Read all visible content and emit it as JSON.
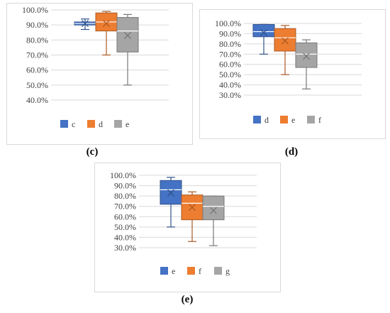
{
  "chart_data": [
    {
      "type": "box",
      "ylim": [
        40,
        100
      ],
      "ytick_labels": [
        "100.0%",
        "90.0%",
        "80.0%",
        "70.0%",
        "60.0%",
        "50.0%",
        "40.0%"
      ],
      "grid": true,
      "legend_position": "bottom",
      "colors": [
        "#4472c4",
        "#ed7d31",
        "#a5a5a5"
      ],
      "series": [
        {
          "name": "c",
          "min": 87,
          "q1": 90,
          "median": 91,
          "q3": 92,
          "max": 94,
          "mean": 91
        },
        {
          "name": "d",
          "min": 70,
          "q1": 86,
          "median": 92,
          "q3": 98,
          "max": 99,
          "mean": 91
        },
        {
          "name": "e",
          "min": 50,
          "q1": 72,
          "median": 86,
          "q3": 95,
          "max": 97,
          "mean": 83
        }
      ]
    },
    {
      "type": "box",
      "ylim": [
        30,
        100
      ],
      "ytick_labels": [
        "100.0%",
        "90.0%",
        "80.0%",
        "70.0%",
        "60.0%",
        "50.0%",
        "40.0%",
        "30.0%"
      ],
      "grid": true,
      "legend_position": "bottom",
      "colors": [
        "#4472c4",
        "#ed7d31",
        "#a5a5a5"
      ],
      "series": [
        {
          "name": "d",
          "min": 70,
          "q1": 87,
          "median": 92,
          "q3": 99,
          "max": 99,
          "mean": 91
        },
        {
          "name": "e",
          "min": 50,
          "q1": 73,
          "median": 86,
          "q3": 95,
          "max": 98,
          "mean": 83
        },
        {
          "name": "f",
          "min": 36,
          "q1": 57,
          "median": 70,
          "q3": 81,
          "max": 84,
          "mean": 68
        }
      ]
    },
    {
      "type": "box",
      "ylim": [
        30,
        100
      ],
      "ytick_labels": [
        "100.0%",
        "90.0%",
        "80.0%",
        "70.0%",
        "60.0%",
        "50.0%",
        "40.0%",
        "30.0%"
      ],
      "grid": true,
      "legend_position": "bottom",
      "colors": [
        "#4472c4",
        "#ed7d31",
        "#a5a5a5"
      ],
      "series": [
        {
          "name": "e",
          "min": 50,
          "q1": 72,
          "median": 86,
          "q3": 95,
          "max": 98,
          "mean": 83
        },
        {
          "name": "f",
          "min": 36,
          "q1": 57,
          "median": 73,
          "q3": 81,
          "max": 84,
          "mean": 69
        },
        {
          "name": "g",
          "min": 32,
          "q1": 57,
          "median": 70,
          "q3": 80,
          "max": 80,
          "mean": 66
        }
      ]
    }
  ],
  "captions": [
    "(c)",
    "(d)",
    "(e)"
  ]
}
